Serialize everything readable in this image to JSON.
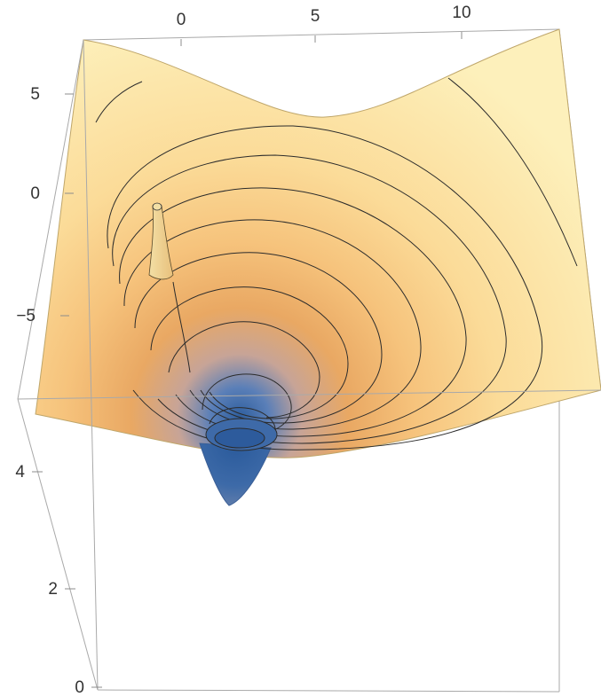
{
  "chart_data": {
    "type": "surface3d",
    "title": "",
    "x_ticks": [
      "0",
      "5",
      "10"
    ],
    "y_ticks": [
      "5",
      "0",
      "−5"
    ],
    "z_ticks": [
      "4",
      "2",
      "0"
    ],
    "contour_levels": 12,
    "surface": "potential well with a deep minimum and a thin spike near the rim",
    "colors": {
      "rim": "#fbe7a4",
      "mid": "#f4b766",
      "deep": "#c6a89a",
      "bottom": "#2f5f9e",
      "box": "#a9a9a9",
      "contour": "#2b2b2b"
    }
  }
}
